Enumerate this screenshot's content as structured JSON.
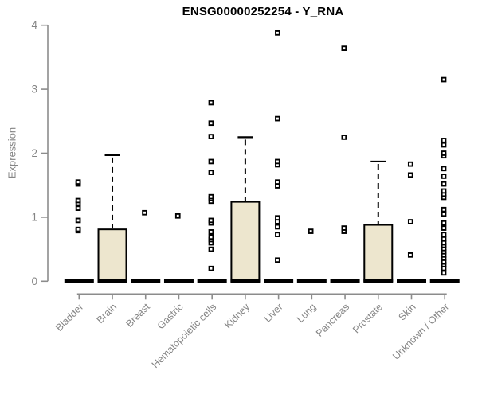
{
  "chart_data": {
    "type": "boxplot",
    "title": "ENSG00000252254 - Y_RNA",
    "ylabel": "Expression",
    "xlabel": "",
    "ylim": [
      0,
      4
    ],
    "yticks": [
      0,
      1,
      2,
      3,
      4
    ],
    "grid": false,
    "legend": false,
    "categories": [
      "Bladder",
      "Brain",
      "Breast",
      "Gastric",
      "Hematopoietic cells",
      "Kidney",
      "Liver",
      "Lung",
      "Pancreas",
      "Prostate",
      "Skin",
      "Unknown / Other"
    ],
    "series": [
      {
        "category": "Bladder",
        "median": 0,
        "q1": 0,
        "q3": 0,
        "whisker_low": 0,
        "whisker_high": 0,
        "outliers": [
          0.79,
          0.81,
          0.95,
          1.14,
          1.22,
          1.26,
          1.52,
          1.55
        ]
      },
      {
        "category": "Brain",
        "median": 0,
        "q1": 0,
        "q3": 0.81,
        "whisker_low": 0,
        "whisker_high": 1.97,
        "outliers": []
      },
      {
        "category": "Breast",
        "median": 0,
        "q1": 0,
        "q3": 0,
        "whisker_low": 0,
        "whisker_high": 0,
        "outliers": [
          1.07
        ]
      },
      {
        "category": "Gastric",
        "median": 0,
        "q1": 0,
        "q3": 0,
        "whisker_low": 0,
        "whisker_high": 0,
        "outliers": [
          1.02
        ]
      },
      {
        "category": "Hematopoietic cells",
        "median": 0,
        "q1": 0,
        "q3": 0,
        "whisker_low": 0,
        "whisker_high": 0,
        "outliers": [
          0.2,
          0.5,
          0.6,
          0.65,
          0.69,
          0.77,
          0.91,
          0.95,
          1.25,
          1.29,
          1.32,
          1.7,
          1.87,
          2.26,
          2.47,
          2.79
        ]
      },
      {
        "category": "Kidney",
        "median": 0,
        "q1": 0,
        "q3": 1.24,
        "whisker_low": 0,
        "whisker_high": 2.25,
        "outliers": []
      },
      {
        "category": "Liver",
        "median": 0,
        "q1": 0,
        "q3": 0,
        "whisker_low": 0,
        "whisker_high": 0,
        "outliers": [
          0.33,
          0.73,
          0.85,
          0.93,
          0.99,
          1.49,
          1.55,
          1.82,
          1.87,
          2.54,
          3.88
        ]
      },
      {
        "category": "Lung",
        "median": 0,
        "q1": 0,
        "q3": 0,
        "whisker_low": 0,
        "whisker_high": 0,
        "outliers": [
          0.78
        ]
      },
      {
        "category": "Pancreas",
        "median": 0,
        "q1": 0,
        "q3": 0,
        "whisker_low": 0,
        "whisker_high": 0,
        "outliers": [
          0.78,
          0.83,
          2.25,
          3.64
        ]
      },
      {
        "category": "Prostate",
        "median": 0,
        "q1": 0,
        "q3": 0.88,
        "whisker_low": 0,
        "whisker_high": 1.87,
        "outliers": []
      },
      {
        "category": "Skin",
        "median": 0,
        "q1": 0,
        "q3": 0,
        "whisker_low": 0,
        "whisker_high": 0,
        "outliers": [
          0.41,
          0.93,
          1.66,
          1.83
        ]
      },
      {
        "category": "Unknown / Other",
        "median": 0,
        "q1": 0,
        "q3": 0,
        "whisker_low": 0,
        "whisker_high": 0,
        "outliers": [
          0.13,
          0.2,
          0.26,
          0.3,
          0.36,
          0.41,
          0.46,
          0.51,
          0.56,
          0.6,
          0.66,
          0.73,
          0.83,
          0.91,
          1.05,
          1.12,
          1.31,
          1.36,
          1.41,
          1.52,
          1.64,
          1.76,
          1.96,
          2.0,
          2.13,
          2.2,
          3.15
        ]
      }
    ],
    "colors": {
      "box_fill": "#EDE6CE",
      "box_border": "#000000",
      "median": "#000000",
      "whisker": "#000000",
      "outlier": "#000000",
      "axis": "#8C8C8C",
      "tick_label": "#858585",
      "title": "#000000"
    }
  }
}
